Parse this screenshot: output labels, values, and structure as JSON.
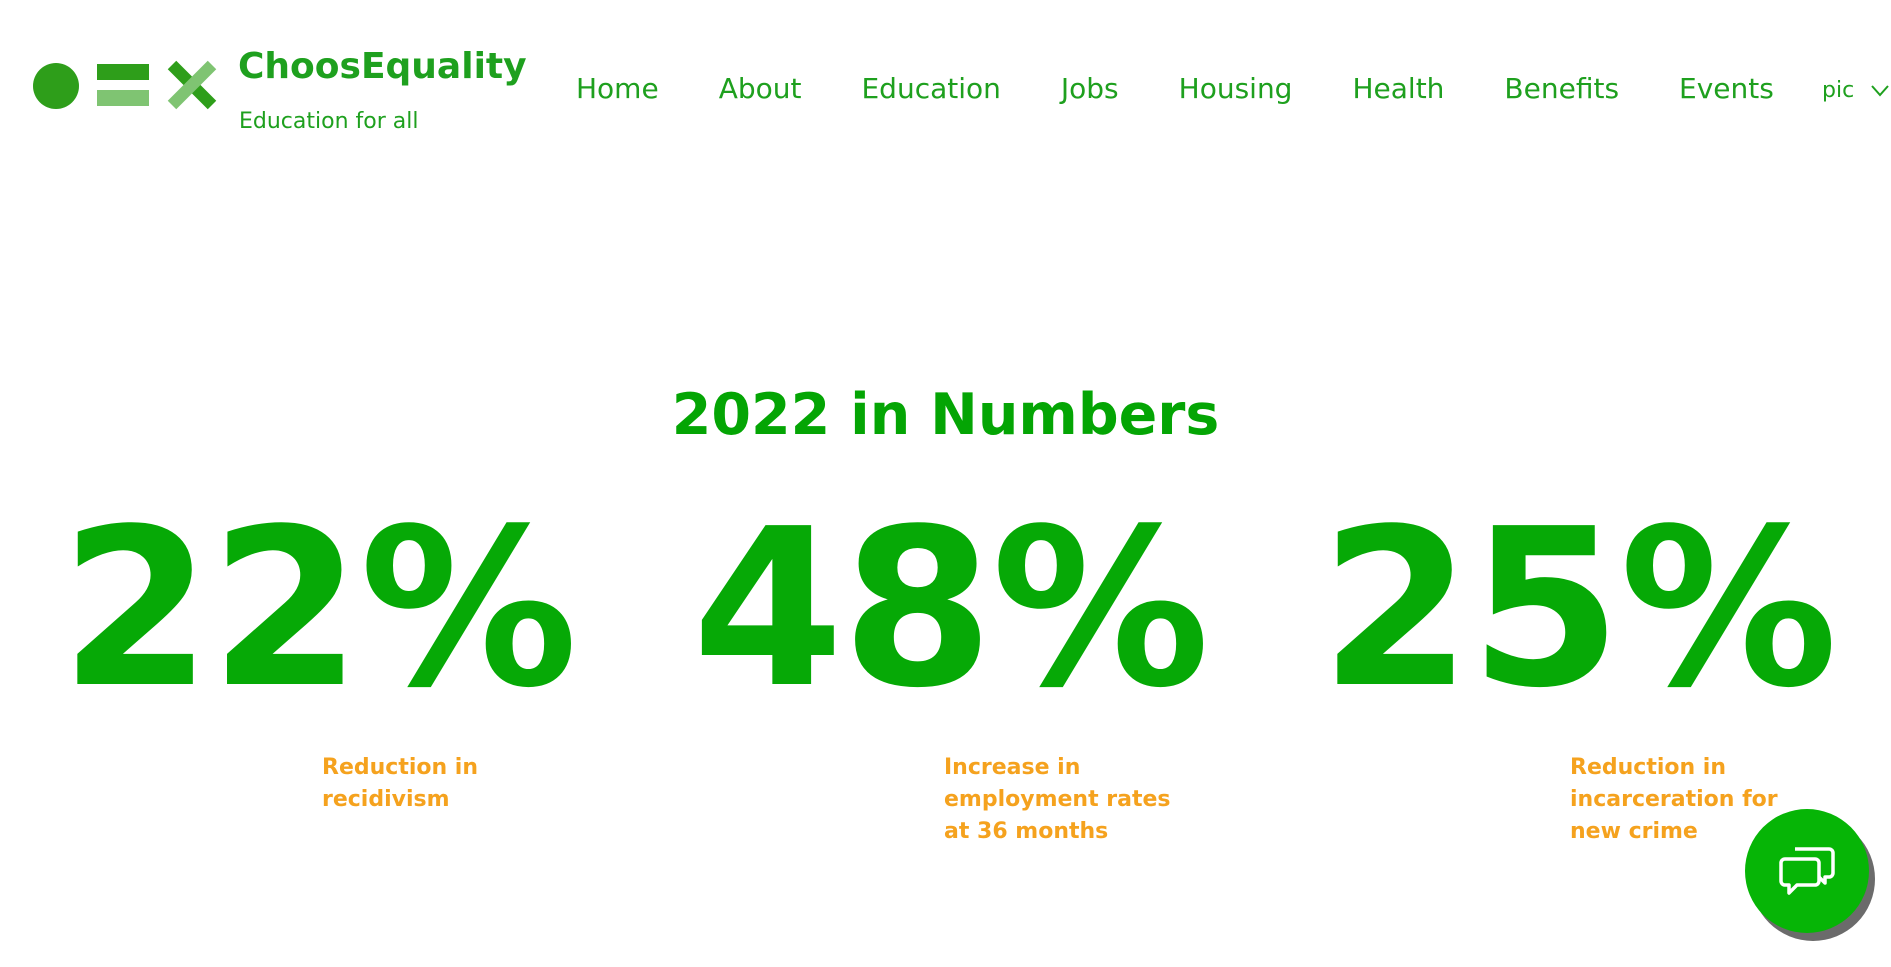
{
  "header": {
    "brand_name": "ChoosEquality",
    "tagline": "Education for all",
    "nav": [
      {
        "label": "Home"
      },
      {
        "label": "About"
      },
      {
        "label": "Education"
      },
      {
        "label": "Jobs"
      },
      {
        "label": "Housing"
      },
      {
        "label": "Health"
      },
      {
        "label": "Benefits"
      },
      {
        "label": "Events"
      }
    ],
    "language_select": "pic"
  },
  "main": {
    "section_title": "2022 in Numbers",
    "stats": [
      {
        "value": "22%",
        "label": "Reduction in recidivism"
      },
      {
        "value": "48%",
        "label": "Increase in employment rates at 36 months"
      },
      {
        "value": "25%",
        "label": "Reduction in incarceration for new crime"
      }
    ]
  },
  "colors": {
    "brand_green": "#1ea01e",
    "stat_green": "#06a906",
    "accent_orange": "#f5a21e",
    "chat_green": "#06b506"
  },
  "icons": {
    "logo": "circle-equals-times-logo",
    "language": "chevron-down-icon",
    "chat": "chat-bubbles-icon"
  }
}
